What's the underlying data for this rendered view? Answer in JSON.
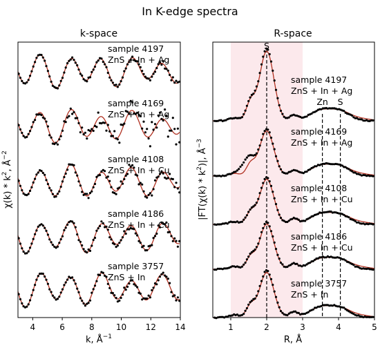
{
  "title": "In K-edge spectra",
  "colors": {
    "fit": "#b03020",
    "data": "#000000",
    "window": "#f9d7dc"
  },
  "chart_data": [
    {
      "type": "line",
      "subtitle": "k-space",
      "xlabel": "k, Å",
      "xlabel_sup": "−1",
      "ylabel": "χ(k) * k",
      "ylabel_sup1": "2",
      "ylabel_mid": ", Å",
      "ylabel_sup2": "−2",
      "xlim": [
        3,
        14
      ],
      "xticks": [
        "4",
        "6",
        "8",
        "10",
        "12",
        "14"
      ],
      "xtick_values": [
        4,
        6,
        8,
        10,
        12,
        14
      ],
      "series": [
        {
          "name_line1": "sample 4197",
          "name_line2": "ZnS + In + Ag",
          "offset": 0,
          "freq": 3.05,
          "phase": 0.3,
          "amp": 1.0,
          "noise": 0.1
        },
        {
          "name_line1": "sample 4169",
          "name_line2": "ZnS + In + Ag",
          "offset": 1,
          "freq": 3.05,
          "phase": 0.3,
          "amp": 1.0,
          "noise": 0.45
        },
        {
          "name_line1": "sample 4108",
          "name_line2": "ZnS + In + Cu",
          "offset": 2,
          "freq": 3.05,
          "phase": 0.3,
          "amp": 1.0,
          "noise": 0.2
        },
        {
          "name_line1": "sample 4186",
          "name_line2": "ZnS + In + Cu",
          "offset": 3,
          "freq": 3.05,
          "phase": 0.3,
          "amp": 1.0,
          "noise": 0.15
        },
        {
          "name_line1": "sample 3757",
          "name_line2": "ZnS + In",
          "offset": 4,
          "freq": 3.05,
          "phase": 0.3,
          "amp": 1.0,
          "noise": 0.12
        }
      ]
    },
    {
      "type": "line",
      "subtitle": "R-space",
      "xlabel": "R,  Å",
      "ylabel": "|FT(χ(k) * k",
      "ylabel_sup1": "2",
      "ylabel_mid": ")|, Å",
      "ylabel_sup2": "−3",
      "xlim": [
        0.5,
        5
      ],
      "xticks": [
        "1",
        "2",
        "3",
        "4",
        "5"
      ],
      "xtick_values": [
        1,
        2,
        3,
        4,
        5
      ],
      "reference_lines": [
        {
          "label": "S",
          "x": 2.0
        },
        {
          "label": "Zn",
          "x": 3.55
        },
        {
          "label": "S",
          "x": 4.05
        }
      ],
      "series": [
        {
          "name_line1": "sample 4197",
          "name_line2": "ZnS + In + Ag",
          "offset": 0
        },
        {
          "name_line1": "sample 4169",
          "name_line2": "ZnS + In + Ag",
          "offset": 1
        },
        {
          "name_line1": "sample 4108",
          "name_line2": "ZnS + In + Cu",
          "offset": 2
        },
        {
          "name_line1": "sample 4186",
          "name_line2": "ZnS + In + Cu",
          "offset": 3
        },
        {
          "name_line1": "sample 3757",
          "name_line2": "ZnS + In",
          "offset": 4
        }
      ]
    }
  ]
}
